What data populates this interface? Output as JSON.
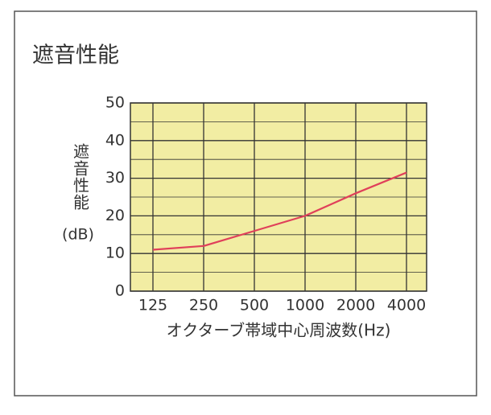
{
  "chart_data": {
    "type": "line",
    "title": "遮音性能",
    "y_label": "遮音性能",
    "y_unit": "(dB)",
    "x_label": "オクターブ帯域中心周波数(Hz)",
    "categories": [
      "125",
      "250",
      "500",
      "1000",
      "2000",
      "4000"
    ],
    "series": [
      {
        "name": "遮音性能",
        "color": "#e0405a",
        "values": [
          11,
          12,
          16,
          20,
          26,
          31.5
        ]
      }
    ],
    "ylim": [
      0,
      50
    ],
    "yticks": [
      0,
      10,
      20,
      30,
      40,
      50
    ],
    "grid": true,
    "plot_color": "#f2eda3"
  }
}
